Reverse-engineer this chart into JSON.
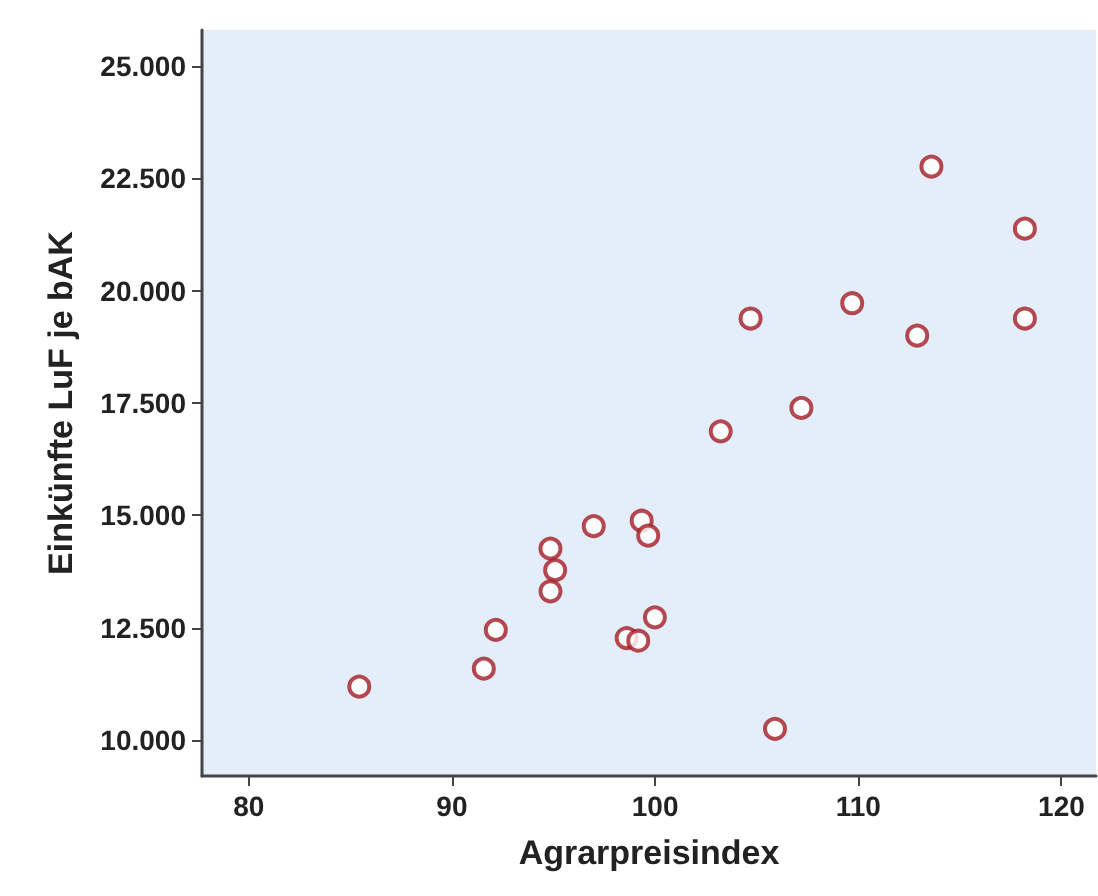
{
  "chart_data": {
    "type": "scatter",
    "xlabel": "Agrarpreisindex",
    "ylabel": "Einkünfte LuF je bAK",
    "x": [
      85.44,
      91.57,
      92.16,
      94.85,
      95.08,
      94.85,
      96.98,
      98.6,
      99.17,
      99.34,
      99.66,
      99.99,
      103.23,
      104.7,
      107.2,
      109.7,
      112.9,
      113.6,
      118.2,
      118.2,
      105.9
    ],
    "values": [
      11190,
      11590,
      12450,
      14260,
      13780,
      13310,
      14760,
      12270,
      12210,
      14880,
      14550,
      12730,
      16870,
      19380,
      17390,
      19720,
      19000,
      22760,
      21380,
      19380,
      10250
    ],
    "color": "#a51c24",
    "marker": "circle",
    "grid": false,
    "xlim": [
      77.7,
      121.7
    ],
    "xticks": [
      80,
      90,
      100,
      110,
      120
    ],
    "ylim": [
      9200,
      25800
    ],
    "yticks": [
      {
        "value": 10000,
        "label": "10.000"
      },
      {
        "value": 12500,
        "label": "12.500"
      },
      {
        "value": 15000,
        "label": "15.000"
      },
      {
        "value": 17500,
        "label": "17.500"
      },
      {
        "value": 20000,
        "label": "20.000"
      },
      {
        "value": 22500,
        "label": "22.500"
      },
      {
        "value": 25000,
        "label": "25.000"
      }
    ]
  }
}
